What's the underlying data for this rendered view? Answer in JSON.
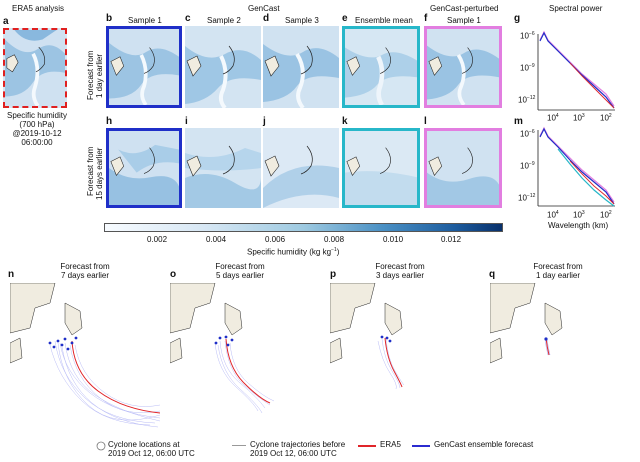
{
  "headers": {
    "era5": "ERA5 analysis",
    "gencast": "GenCast",
    "perturbed": "GenCast-perturbed",
    "spectral": "Spectral power"
  },
  "panel_letters": [
    "a",
    "b",
    "c",
    "d",
    "e",
    "f",
    "g",
    "h",
    "i",
    "j",
    "k",
    "l",
    "m",
    "n",
    "o",
    "p",
    "q"
  ],
  "column_titles": [
    "Sample 1",
    "Sample 2",
    "Sample 3",
    "Ensemble mean",
    "Sample 1"
  ],
  "row_labels": {
    "row1": [
      "Forecast from",
      "1 day earlier"
    ],
    "row2": [
      "Forecast from",
      "15 days earlier"
    ]
  },
  "era5_caption": [
    "Specific humidity",
    "(700 hPa)",
    "@2019-10-12",
    "06:00:00"
  ],
  "colorbar": {
    "ticks": [
      "0.002",
      "0.004",
      "0.006",
      "0.008",
      "0.010",
      "0.012"
    ],
    "label": "Specific humidity (kg kg",
    "label_sup": "−1",
    "label_end": ")"
  },
  "spectral": {
    "g_yticks": [
      "10",
      "10",
      "10"
    ],
    "g_yexp": [
      "−6",
      "−9",
      "−12"
    ],
    "m_yticks": [
      "10",
      "10",
      "10"
    ],
    "m_yexp": [
      "−6",
      "−9",
      "−12"
    ],
    "xticks": [
      "10",
      "10",
      "10"
    ],
    "xexp": [
      "4",
      "3",
      "2"
    ],
    "xlabel": "Wavelength (km)"
  },
  "trajectory_titles": [
    [
      "Forecast from",
      "7 days earlier"
    ],
    [
      "Forecast from",
      "5 days earlier"
    ],
    [
      "Forecast from",
      "3 days earlier"
    ],
    [
      "Forecast from",
      "1 day earlier"
    ]
  ],
  "legend": {
    "cyclone_locations": [
      "Cyclone locations at",
      "2019 Oct 12, 06:00 UTC"
    ],
    "trajectories": [
      "Cyclone trajectories before",
      "2019 Oct 12, 06:00 UTC"
    ],
    "era5": "ERA5",
    "ensemble": "GenCast ensemble forecast"
  },
  "colors": {
    "sample": "#1f2fc8",
    "ensemble_mean": "#27b7c9",
    "perturbed": "#e27ee0",
    "era5_line": "#e0252a",
    "gencast_line": "#2b2bd0",
    "land": "#f0ece0"
  }
}
